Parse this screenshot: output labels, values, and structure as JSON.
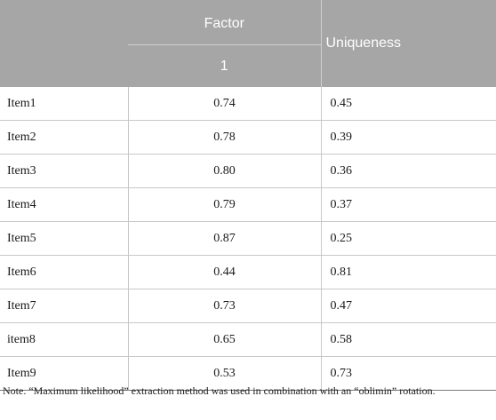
{
  "table": {
    "header": {
      "factor_label": "Factor",
      "factor_number": "1",
      "uniqueness_label": "Uniqueness"
    },
    "rows": [
      {
        "item": "Item1",
        "factor": "0.74",
        "uniqueness": "0.45"
      },
      {
        "item": "Item2",
        "factor": "0.78",
        "uniqueness": "0.39"
      },
      {
        "item": "Item3",
        "factor": "0.80",
        "uniqueness": "0.36"
      },
      {
        "item": "Item4",
        "factor": "0.79",
        "uniqueness": "0.37"
      },
      {
        "item": "Item5",
        "factor": "0.87",
        "uniqueness": "0.25"
      },
      {
        "item": "Item6",
        "factor": "0.44",
        "uniqueness": "0.81"
      },
      {
        "item": "Item7",
        "factor": "0.73",
        "uniqueness": "0.47"
      },
      {
        "item": "item8",
        "factor": "0.65",
        "uniqueness": "0.58"
      },
      {
        "item": "Item9",
        "factor": "0.53",
        "uniqueness": "0.73"
      }
    ]
  },
  "note": "Note. “Maximum likelihood” extraction method was used in combination with an “oblimin” rotation.",
  "colors": {
    "header_background": "#a6a6a6",
    "header_text": "#ffffff"
  }
}
